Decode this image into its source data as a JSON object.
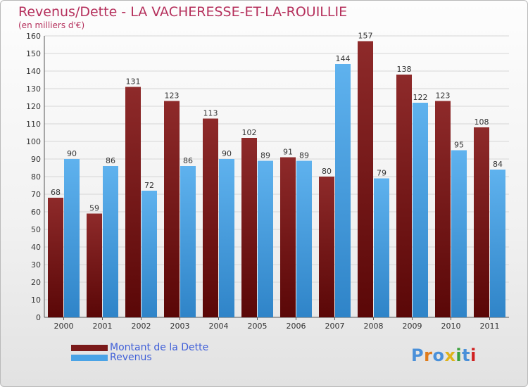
{
  "header": {
    "title": "Revenus/Dette - LA VACHERESSE-ET-LA-ROUILLIE",
    "subtitle": "(en milliers d'€)"
  },
  "legend": [
    {
      "label": "Montant de la Dette",
      "color": "#7a1a1a"
    },
    {
      "label": "Revenus",
      "color": "#4aa3e6"
    }
  ],
  "logo": {
    "text": "Proxiti",
    "colors": [
      "#4a90d9",
      "#e07b1a",
      "#4a90d9",
      "#e0b31a",
      "#3aa03a",
      "#4a90d9",
      "#d02020"
    ]
  },
  "chart_data": {
    "type": "bar",
    "categories": [
      "2000",
      "2001",
      "2002",
      "2003",
      "2004",
      "2005",
      "2006",
      "2007",
      "2008",
      "2009",
      "2010",
      "2011"
    ],
    "series": [
      {
        "name": "Montant de la Dette",
        "values": [
          68,
          59,
          131,
          123,
          113,
          102,
          91,
          80,
          157,
          138,
          123,
          108
        ]
      },
      {
        "name": "Revenus",
        "values": [
          90,
          86,
          72,
          86,
          90,
          89,
          89,
          144,
          79,
          122,
          95,
          84
        ]
      }
    ],
    "ylim": [
      0,
      160
    ],
    "yticks": [
      0,
      10,
      20,
      30,
      40,
      50,
      60,
      70,
      80,
      90,
      100,
      110,
      120,
      130,
      140,
      150,
      160
    ],
    "grid": true,
    "legend_position": "bottom-left"
  }
}
